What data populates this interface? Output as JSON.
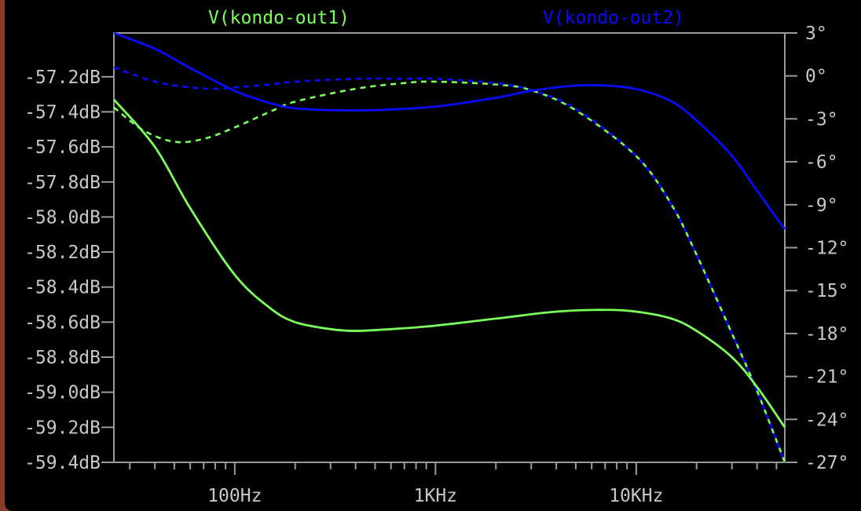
{
  "chart_data": {
    "type": "line",
    "title": "",
    "x_axis": {
      "scale": "log",
      "range_hz": [
        25,
        55000
      ],
      "tick_labels": [
        {
          "value": 100,
          "label": "100Hz"
        },
        {
          "value": 1000,
          "label": "1KHz"
        },
        {
          "value": 10000,
          "label": "10KHz"
        }
      ]
    },
    "y_left": {
      "unit": "dB",
      "range": [
        -59.4,
        -56.95
      ],
      "tick_values": [
        -57.2,
        -57.4,
        -57.6,
        -57.8,
        -58.0,
        -58.2,
        -58.4,
        -58.6,
        -58.8,
        -59.0,
        -59.2,
        -59.4
      ],
      "tick_labels": [
        "-57.2dB",
        "-57.4dB",
        "-57.6dB",
        "-57.8dB",
        "-58.0dB",
        "-58.2dB",
        "-58.4dB",
        "-58.6dB",
        "-58.8dB",
        "-59.0dB",
        "-59.2dB",
        "-59.4dB"
      ]
    },
    "y_right": {
      "unit": "degrees",
      "range": [
        -27,
        3
      ],
      "tick_values": [
        3,
        0,
        -3,
        -6,
        -9,
        -12,
        -15,
        -18,
        -21,
        -24,
        -27
      ],
      "tick_labels": [
        "3°",
        "0°",
        "-3°",
        "-6°",
        "-9°",
        "-12°",
        "-15°",
        "-18°",
        "-21°",
        "-24°",
        "-27°"
      ]
    },
    "grid": false,
    "legend_position": "top",
    "series": [
      {
        "name": "V(kondo-out1)",
        "color": "#7cff5c",
        "magnitude_db": [
          [
            25,
            -57.33
          ],
          [
            40,
            -57.6
          ],
          [
            60,
            -57.95
          ],
          [
            100,
            -58.33
          ],
          [
            150,
            -58.52
          ],
          [
            200,
            -58.6
          ],
          [
            300,
            -58.64
          ],
          [
            400,
            -58.65
          ],
          [
            600,
            -58.64
          ],
          [
            1000,
            -58.62
          ],
          [
            2000,
            -58.58
          ],
          [
            4000,
            -58.54
          ],
          [
            7000,
            -58.53
          ],
          [
            10000,
            -58.54
          ],
          [
            15000,
            -58.58
          ],
          [
            20000,
            -58.65
          ],
          [
            30000,
            -58.8
          ],
          [
            40000,
            -58.97
          ],
          [
            55000,
            -59.2
          ]
        ],
        "phase_deg": [
          [
            25,
            -2.2
          ],
          [
            35,
            -3.8
          ],
          [
            50,
            -4.6
          ],
          [
            70,
            -4.4
          ],
          [
            100,
            -3.6
          ],
          [
            150,
            -2.5
          ],
          [
            200,
            -1.8
          ],
          [
            400,
            -0.9
          ],
          [
            700,
            -0.5
          ],
          [
            1000,
            -0.4
          ],
          [
            2000,
            -0.6
          ],
          [
            3000,
            -1.0
          ],
          [
            5000,
            -2.4
          ],
          [
            10000,
            -5.6
          ],
          [
            15000,
            -9.0
          ],
          [
            20000,
            -12.5
          ],
          [
            30000,
            -18.0
          ],
          [
            40000,
            -22.0
          ],
          [
            55000,
            -27.0
          ]
        ]
      },
      {
        "name": "V(kondo-out2)",
        "color": "#0a0aff",
        "magnitude_db": [
          [
            25,
            -56.95
          ],
          [
            40,
            -57.04
          ],
          [
            60,
            -57.15
          ],
          [
            100,
            -57.28
          ],
          [
            150,
            -57.35
          ],
          [
            200,
            -57.38
          ],
          [
            300,
            -57.39
          ],
          [
            500,
            -57.39
          ],
          [
            1000,
            -57.37
          ],
          [
            2000,
            -57.32
          ],
          [
            3000,
            -57.28
          ],
          [
            5000,
            -57.25
          ],
          [
            7000,
            -57.25
          ],
          [
            10000,
            -57.27
          ],
          [
            15000,
            -57.34
          ],
          [
            20000,
            -57.45
          ],
          [
            30000,
            -57.65
          ],
          [
            40000,
            -57.85
          ],
          [
            55000,
            -58.07
          ]
        ],
        "phase_deg": [
          [
            25,
            0.6
          ],
          [
            40,
            -0.4
          ],
          [
            60,
            -0.8
          ],
          [
            80,
            -0.9
          ],
          [
            100,
            -0.8
          ],
          [
            150,
            -0.6
          ],
          [
            200,
            -0.4
          ],
          [
            400,
            -0.2
          ],
          [
            700,
            -0.2
          ],
          [
            1000,
            -0.2
          ],
          [
            2000,
            -0.5
          ],
          [
            3000,
            -1.0
          ],
          [
            5000,
            -2.3
          ],
          [
            10000,
            -5.6
          ],
          [
            15000,
            -9.0
          ],
          [
            20000,
            -12.5
          ],
          [
            30000,
            -18.0
          ],
          [
            40000,
            -22.0
          ],
          [
            55000,
            -27.0
          ]
        ]
      }
    ]
  }
}
